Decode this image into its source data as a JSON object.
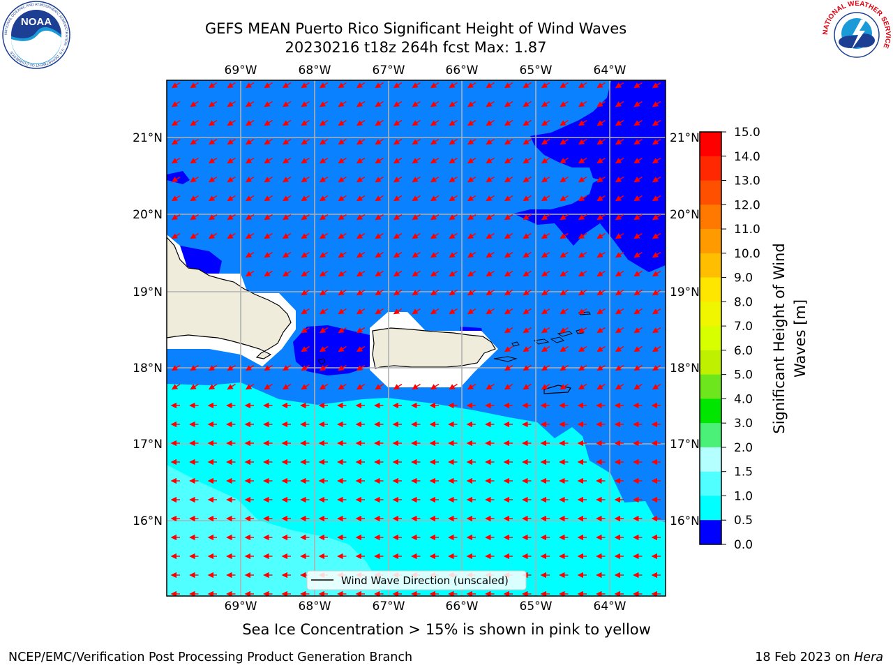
{
  "header": {
    "title_line1": "GEFS MEAN Puerto Rico Significant Height of Wind Waves",
    "title_line2": "20230216 t18z 264h fcst   Max: 1.87"
  },
  "logos": {
    "left": "NOAA",
    "left_ring_text": "NATIONAL OCEANIC AND ATMOSPHERIC ADMINISTRATION · U.S. DEPARTMENT OF COMMERCE",
    "right_ring_text": "NATIONAL WEATHER SERVICE"
  },
  "map": {
    "lon_labels": [
      "69°W",
      "68°W",
      "67°W",
      "66°W",
      "65°W",
      "64°W"
    ],
    "lat_labels": [
      "21°N",
      "20°N",
      "19°N",
      "18°N",
      "17°N",
      "16°N"
    ],
    "legend_label": "Wind Wave Direction (unscaled)",
    "arrow_color": "#ff0000",
    "land_color": "#efecdb"
  },
  "colorbar": {
    "label": "Significant Height of Wind Waves [m]",
    "label_line1": "Significant Height of Wind",
    "label_line2": "Waves [m]",
    "ticks": [
      "15.0",
      "14.0",
      "13.0",
      "12.0",
      "11.0",
      "10.0",
      "9.0",
      "8.0",
      "7.0",
      "6.0",
      "5.0",
      "4.0",
      "3.0",
      "2.0",
      "1.5",
      "1.0",
      "0.5",
      "0.0"
    ],
    "colors": [
      "#ff0000",
      "#ff2800",
      "#ff5000",
      "#ff7800",
      "#ff9b00",
      "#ffbe00",
      "#ffe600",
      "#f0f500",
      "#d7ff00",
      "#bef000",
      "#6ee61e",
      "#00e600",
      "#4bf078",
      "#b4ffff",
      "#50ffff",
      "#00ffff",
      "#0a82ff",
      "#0000ff"
    ]
  },
  "notes": {
    "sea_ice": "Sea Ice Concentration > 15% is shown in pink to yellow",
    "footer_left": "NCEP/EMC/Verification Post Processing Product Generation Branch",
    "footer_date": "18 Feb 2023 on ",
    "footer_machine": "Hera"
  }
}
